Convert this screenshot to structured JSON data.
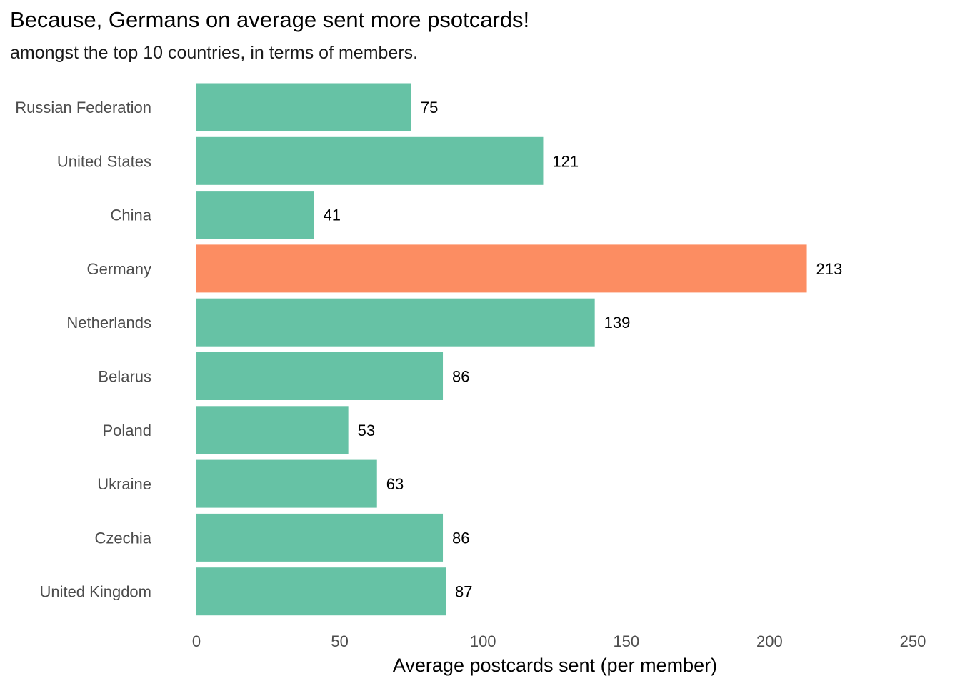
{
  "chart_data": {
    "type": "bar",
    "orientation": "horizontal",
    "title": "Because, Germans on average sent more psotcards!",
    "subtitle": "amongst the top 10 countries, in terms of members.",
    "xlabel": "Average postcards sent (per member)",
    "ylabel": "",
    "categories": [
      "Russian Federation",
      "United States",
      "China",
      "Germany",
      "Netherlands",
      "Belarus",
      "Poland",
      "Ukraine",
      "Czechia",
      "United Kingdom"
    ],
    "values": [
      75,
      121,
      41,
      213,
      139,
      86,
      53,
      63,
      86,
      87
    ],
    "value_labels": [
      "75",
      "121",
      "41",
      "213",
      "139",
      "86",
      "53",
      "63",
      "86",
      "87"
    ],
    "highlight": "Germany",
    "colors": {
      "default": "#66c2a5",
      "highlight": "#fc8d62"
    },
    "xlim": [
      0,
      250
    ],
    "xticks": [
      0,
      50,
      100,
      150,
      200,
      250
    ],
    "xtick_labels": [
      "0",
      "50",
      "100",
      "150",
      "200",
      "250"
    ],
    "grid": false,
    "legend": "none"
  }
}
